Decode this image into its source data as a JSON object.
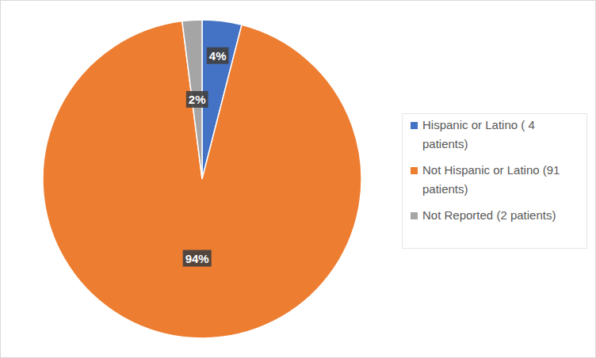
{
  "chart_data": {
    "type": "pie",
    "categories": [
      "Hispanic or Latino ( 4 patients)",
      "Not Hispanic or Latino (91 patients)",
      "Not Reported (2 patients)"
    ],
    "values": [
      4,
      94,
      2
    ],
    "value_labels": [
      "4%",
      "94%",
      "2%"
    ],
    "colors": [
      "#4472c4",
      "#ed7d31",
      "#a5a5a5"
    ],
    "data_labels": true,
    "legend": "right"
  }
}
